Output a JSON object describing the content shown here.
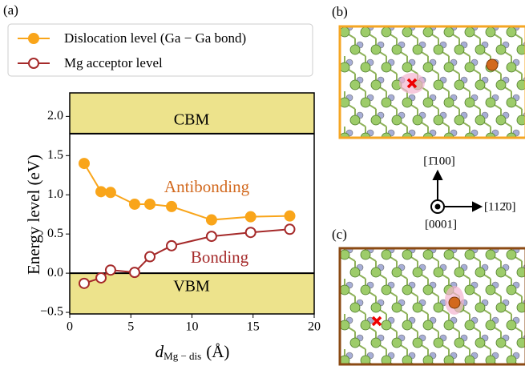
{
  "panel_labels": [
    "(a)",
    "(b)",
    "(c)"
  ],
  "directions": [
    "[1̄100]",
    "[112̄0]",
    "[0001]"
  ],
  "chart_data": {
    "type": "line",
    "x": [
      1.18,
      2.56,
      3.34,
      5.31,
      6.56,
      8.33,
      11.6,
      14.8,
      18.0
    ],
    "series": [
      {
        "name": "Dislocation level (Ga − Ga bond)",
        "color": "#f9a51a",
        "marker": "filled",
        "values": [
          1.4,
          1.04,
          1.03,
          0.88,
          0.88,
          0.85,
          0.68,
          0.72,
          0.73
        ]
      },
      {
        "name": "Mg acceptor level",
        "color": "#a52a2a",
        "marker": "open",
        "values": [
          -0.13,
          -0.06,
          0.04,
          0.01,
          0.21,
          0.35,
          0.47,
          0.52,
          0.56
        ]
      }
    ],
    "bands": [
      {
        "label": "CBM",
        "edge": 1.78,
        "side": "above"
      },
      {
        "label": "VBM",
        "edge": 0,
        "side": "below"
      }
    ],
    "band_color": "#ede38c",
    "annotations": [
      {
        "text": "Antibonding",
        "color": "#d2691e"
      },
      {
        "text": "Bonding",
        "color": "#a52a2a"
      }
    ],
    "xlabel": {
      "symbol": "d",
      "subscript": "Mg − dis",
      "unit": "(Å)"
    },
    "ylabel": "Energy level (eV)",
    "xlim": [
      0,
      20
    ],
    "ylim": [
      -0.52,
      2.3
    ],
    "xticks": [
      0,
      5,
      10,
      15,
      20
    ],
    "yticks": [
      {
        "value": -0.5,
        "label": "−0.5"
      },
      {
        "value": 0,
        "label": "0.0"
      },
      0.5,
      {
        "value": 1,
        "label": "1.0"
      },
      1.5,
      {
        "value": 2,
        "label": "2.0"
      }
    ]
  }
}
